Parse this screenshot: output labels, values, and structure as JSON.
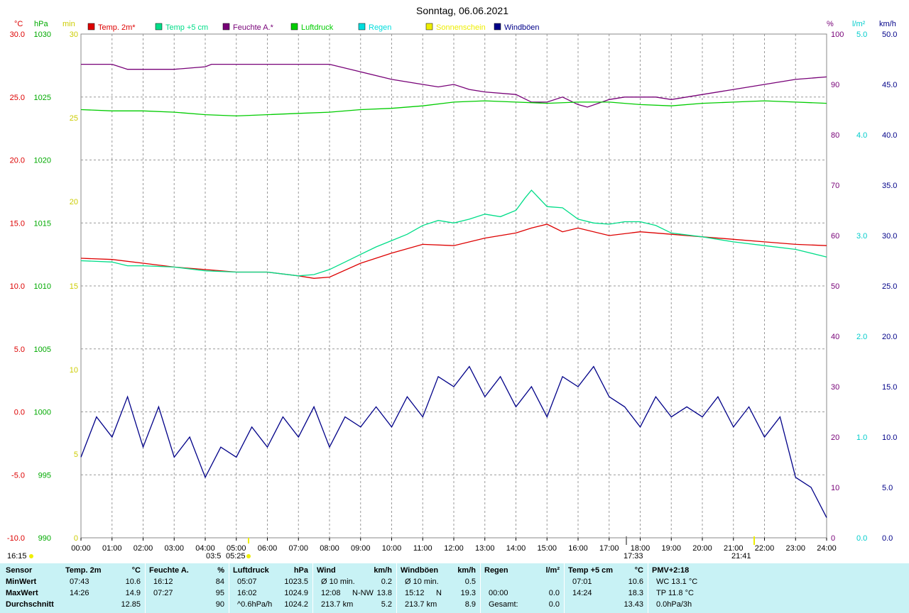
{
  "title": "Sonntag, 06.06.2021",
  "axis_units": {
    "celsius": "°C",
    "hpa": "hPa",
    "min": "min",
    "percent": "%",
    "rain": "l/m²",
    "kmh": "km/h"
  },
  "legend": [
    {
      "label": "Temp. 2m*",
      "color": "#dd0000"
    },
    {
      "label": "Temp +5 cm",
      "color": "#00dd88"
    },
    {
      "label": "Feuchte A.*",
      "color": "#770077"
    },
    {
      "label": "Luftdruck",
      "color": "#00cc00"
    },
    {
      "label": "Regen",
      "color": "#00dddd"
    },
    {
      "label": "Sonnenschein",
      "color": "#eeee00"
    },
    {
      "label": "Windböen",
      "color": "#000088"
    }
  ],
  "sun_markers": {
    "left_time": "16:15",
    "dawn": "03:5",
    "sunrise": "05:25",
    "solar_noon": "17:33",
    "sunset": "21:41"
  },
  "chart_data": {
    "type": "line",
    "title": "Sonntag, 06.06.2021",
    "x_ticks": [
      "00:00",
      "01:00",
      "02:00",
      "03:00",
      "04:00",
      "05:00",
      "06:00",
      "07:00",
      "08:00",
      "09:00",
      "10:00",
      "11:00",
      "12:00",
      "13:00",
      "14:00",
      "15:00",
      "16:00",
      "17:00",
      "18:00",
      "19:00",
      "20:00",
      "21:00",
      "22:00",
      "23:00",
      "24:00"
    ],
    "x_range_hours": [
      0,
      24
    ],
    "grid": true,
    "axes": {
      "temp_c": {
        "range": [
          -10,
          30
        ],
        "ticks": [
          "30.0",
          "25.0",
          "20.0",
          "15.0",
          "10.0",
          "5.0",
          "0.0",
          "-5.0",
          "-10.0"
        ]
      },
      "pressure_hpa": {
        "range": [
          990,
          1030
        ],
        "ticks": [
          "1030",
          "1025",
          "1020",
          "1015",
          "1010",
          "1005",
          "1000",
          "995",
          "990"
        ]
      },
      "sunshine_min": {
        "ticks": [
          "30",
          "25",
          "20",
          "15",
          "10",
          "5",
          "0"
        ]
      },
      "humidity_pct": {
        "range": [
          0,
          100
        ],
        "ticks": [
          "100",
          "90",
          "80",
          "70",
          "60",
          "50",
          "40",
          "30",
          "20",
          "10",
          "0"
        ]
      },
      "rain_lm2": {
        "range": [
          0,
          5
        ],
        "ticks": [
          "5.0",
          "4.0",
          "3.0",
          "2.0",
          "1.0",
          "0.0"
        ]
      },
      "wind_kmh": {
        "range": [
          0,
          50
        ],
        "ticks": [
          "50.0",
          "45.0",
          "40.0",
          "35.0",
          "30.0",
          "25.0",
          "20.0",
          "15.0",
          "10.0",
          "5.0",
          "0.0"
        ]
      }
    },
    "series": [
      {
        "name": "Temp. 2m*",
        "axis": "temp_c",
        "color": "#dd0000",
        "x": [
          0,
          1,
          2,
          3,
          4,
          5,
          6,
          7,
          7.5,
          8,
          9,
          10,
          11,
          12,
          13,
          14,
          14.5,
          15,
          15.5,
          16,
          17,
          18,
          19,
          20,
          21,
          22,
          23,
          24
        ],
        "y": [
          12.2,
          12.1,
          11.8,
          11.5,
          11.3,
          11.1,
          11.1,
          10.8,
          10.6,
          10.7,
          11.8,
          12.6,
          13.3,
          13.2,
          13.8,
          14.2,
          14.6,
          14.9,
          14.3,
          14.6,
          14.0,
          14.3,
          14.1,
          13.9,
          13.7,
          13.5,
          13.3,
          13.2
        ]
      },
      {
        "name": "Temp +5 cm",
        "axis": "temp_c",
        "color": "#00dd88",
        "x": [
          0,
          1,
          1.5,
          2,
          3,
          4,
          5,
          6,
          7,
          7.5,
          8,
          8.5,
          9,
          9.5,
          10,
          10.5,
          11,
          11.5,
          12,
          12.5,
          13,
          13.5,
          14,
          14.3,
          14.5,
          15,
          15.5,
          16,
          16.5,
          17,
          17.5,
          18,
          18.5,
          19,
          20,
          21,
          22,
          23,
          24
        ],
        "y": [
          12.0,
          11.9,
          11.6,
          11.6,
          11.5,
          11.2,
          11.1,
          11.1,
          10.8,
          10.9,
          11.3,
          11.9,
          12.5,
          13.1,
          13.6,
          14.1,
          14.8,
          15.2,
          15.0,
          15.3,
          15.7,
          15.5,
          16.0,
          17.0,
          17.6,
          16.3,
          16.2,
          15.3,
          15.0,
          14.9,
          15.1,
          15.1,
          14.8,
          14.2,
          13.9,
          13.5,
          13.2,
          12.9,
          12.3
        ]
      },
      {
        "name": "Feuchte A.*",
        "axis": "humidity_pct",
        "color": "#770077",
        "x": [
          0,
          1,
          1.5,
          2,
          3,
          4,
          4.2,
          5,
          6,
          7,
          8,
          9,
          10,
          11,
          11.5,
          12,
          12.5,
          13,
          14,
          14.5,
          15,
          15.5,
          16,
          16.3,
          17,
          17.5,
          18,
          18.5,
          19,
          20,
          21,
          22,
          23,
          24
        ],
        "y": [
          94,
          94,
          93,
          93,
          93,
          93.5,
          94,
          94,
          94,
          94,
          94,
          92.5,
          91,
          90,
          89.5,
          90,
          89,
          88.5,
          88,
          86.5,
          86.5,
          87.5,
          86,
          85.5,
          87,
          87.5,
          87.5,
          87.5,
          87,
          88,
          89,
          90,
          91,
          91.5
        ]
      },
      {
        "name": "Luftdruck",
        "axis": "pressure_hpa",
        "color": "#00cc00",
        "x": [
          0,
          1,
          2,
          3,
          4,
          5,
          6,
          7,
          8,
          9,
          10,
          11,
          12,
          13,
          14,
          15,
          16,
          17,
          18,
          19,
          20,
          21,
          22,
          23,
          24
        ],
        "y": [
          1024.0,
          1023.9,
          1023.9,
          1023.8,
          1023.6,
          1023.5,
          1023.6,
          1023.7,
          1023.8,
          1024.0,
          1024.1,
          1024.3,
          1024.6,
          1024.7,
          1024.6,
          1024.5,
          1024.6,
          1024.6,
          1024.4,
          1024.3,
          1024.5,
          1024.6,
          1024.7,
          1024.6,
          1024.5
        ]
      },
      {
        "name": "Windböen",
        "axis": "wind_kmh",
        "color": "#000088",
        "x": [
          0,
          0.5,
          1,
          1.5,
          2,
          2.5,
          3,
          3.5,
          4,
          4.5,
          5,
          5.5,
          6,
          6.5,
          7,
          7.5,
          8,
          8.5,
          9,
          9.5,
          10,
          10.5,
          11,
          11.5,
          12,
          12.5,
          13,
          13.5,
          14,
          14.5,
          15,
          15.5,
          16,
          16.5,
          17,
          17.5,
          18,
          18.5,
          19,
          19.5,
          20,
          20.5,
          21,
          21.5,
          22,
          22.5,
          23,
          23.5,
          24
        ],
        "y": [
          8,
          12,
          10,
          14,
          9,
          13,
          8,
          10,
          6,
          9,
          8,
          11,
          9,
          12,
          10,
          13,
          9,
          12,
          11,
          13,
          11,
          14,
          12,
          16,
          15,
          17,
          14,
          16,
          13,
          15,
          12,
          16,
          15,
          17,
          14,
          13,
          11,
          14,
          12,
          13,
          12,
          14,
          11,
          13,
          10,
          12,
          6,
          5,
          2
        ]
      }
    ]
  },
  "stats_panel": {
    "row_labels": [
      "Sensor",
      "MinWert",
      "MaxWert",
      "Durchschnitt"
    ],
    "columns": [
      {
        "title": "Temp. 2m",
        "unit": "°C",
        "rows": [
          [
            "07:43",
            "",
            "10.6"
          ],
          [
            "14:26",
            "",
            "14.9"
          ],
          [
            "",
            "",
            "12.85"
          ]
        ]
      },
      {
        "title": "Feuchte A.",
        "unit": "%",
        "rows": [
          [
            "16:12",
            "",
            "84"
          ],
          [
            "07:27",
            "",
            "95"
          ],
          [
            "",
            "",
            "90"
          ]
        ]
      },
      {
        "title": "Luftdruck",
        "unit": "hPa",
        "rows": [
          [
            "05:07",
            "",
            "1023.5"
          ],
          [
            "16:02",
            "",
            "1024.9"
          ],
          [
            "^0.6hPa/h",
            "",
            "1024.2"
          ]
        ]
      },
      {
        "title": "Wind",
        "unit": "km/h",
        "rows": [
          [
            "Ø 10 min.",
            "",
            "0.2"
          ],
          [
            "12:08",
            "N-NW",
            "13.8"
          ],
          [
            "213.7 km",
            "",
            "5.2"
          ]
        ]
      },
      {
        "title": "Windböen",
        "unit": "km/h",
        "rows": [
          [
            "Ø 10 min.",
            "",
            "0.5"
          ],
          [
            "15:12",
            "N",
            "19.3"
          ],
          [
            "213.7 km",
            "",
            "8.9"
          ]
        ]
      },
      {
        "title": "Regen",
        "unit": "l/m²",
        "rows": [
          [
            "",
            "",
            ""
          ],
          [
            "00:00",
            "",
            "0.0"
          ],
          [
            "Gesamt:",
            "",
            "0.0"
          ]
        ]
      },
      {
        "title": "Temp +5 cm",
        "unit": "°C",
        "rows": [
          [
            "07:01",
            "",
            "10.6"
          ],
          [
            "14:24",
            "",
            "18.3"
          ],
          [
            "",
            "",
            "13.43"
          ]
        ]
      },
      {
        "title": "PMV+2:18",
        "unit": "",
        "rows": [
          [
            "WC 13.1 °C",
            "",
            ""
          ],
          [
            "TP 11.8 °C",
            "",
            ""
          ],
          [
            "0.0hPa/3h",
            "",
            ""
          ]
        ]
      }
    ]
  }
}
